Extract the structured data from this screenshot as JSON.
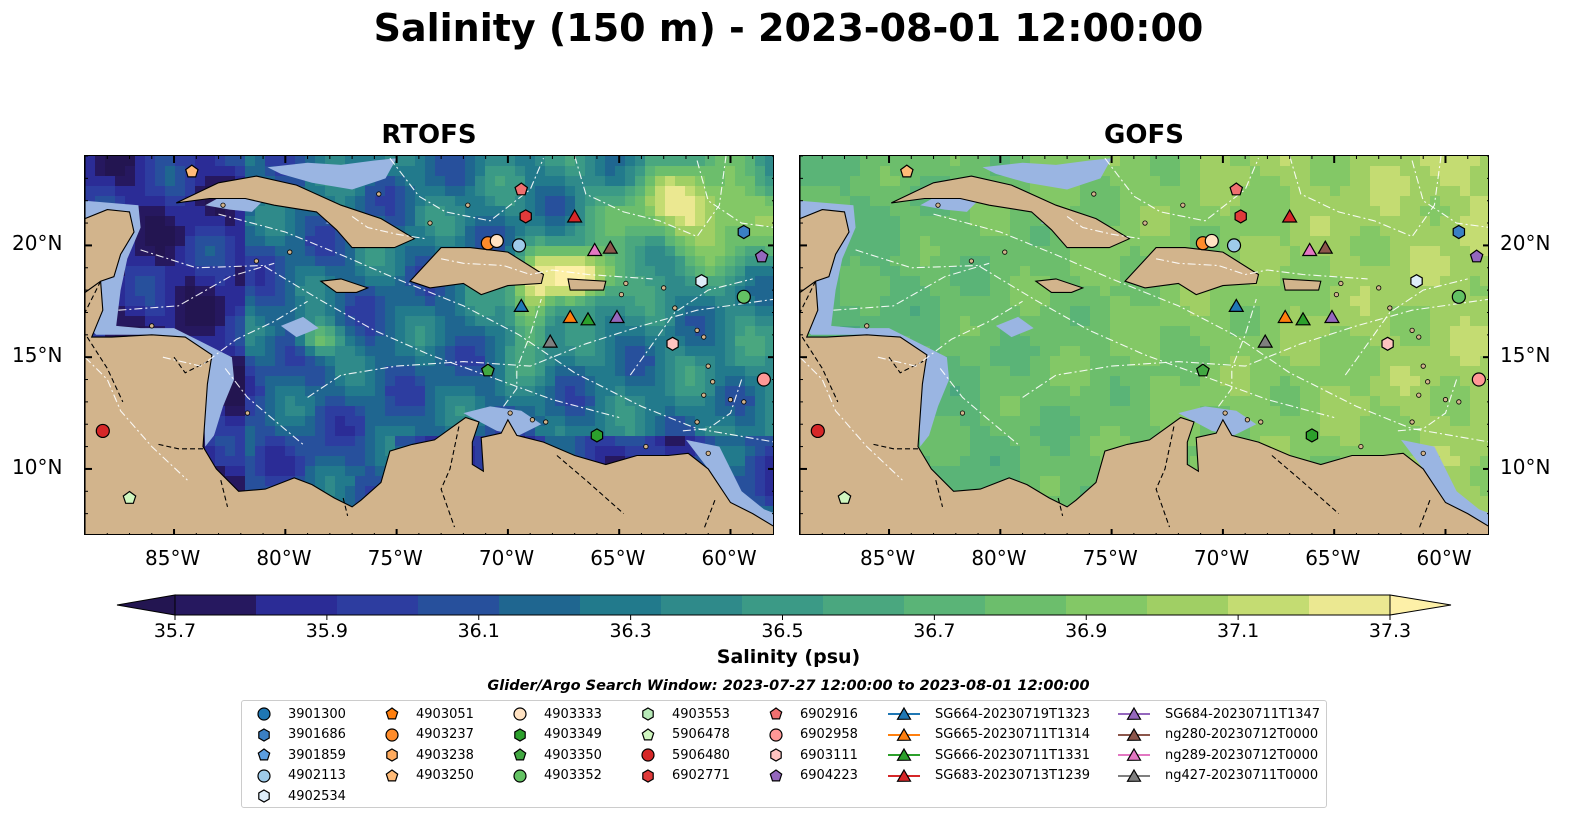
{
  "title": "Salinity (150 m) - 2023-08-01 12:00:00",
  "panels": [
    {
      "title": "RTOFS",
      "scheme": "rtofs"
    },
    {
      "title": "GOFS",
      "scheme": "gofs"
    }
  ],
  "map_extent": {
    "lon": [
      -89,
      -58
    ],
    "lat": [
      7,
      24
    ]
  },
  "lon_ticks": [
    {
      "value": -85,
      "label": "85°W"
    },
    {
      "value": -80,
      "label": "80°W"
    },
    {
      "value": -75,
      "label": "75°W"
    },
    {
      "value": -70,
      "label": "70°W"
    },
    {
      "value": -65,
      "label": "65°W"
    },
    {
      "value": -60,
      "label": "60°W"
    }
  ],
  "lat_ticks": [
    {
      "value": 10,
      "label": "10°N"
    },
    {
      "value": 15,
      "label": "15°N"
    },
    {
      "value": 20,
      "label": "20°N"
    }
  ],
  "colors": {
    "land": "#d2b48c",
    "shelf": "#9ab5e2",
    "track_lines": "#ffffff"
  },
  "colorbar": {
    "title": "Salinity (psu)",
    "min": 35.6,
    "max": 37.4,
    "step": 0.1,
    "tick_values": [
      "35.7",
      "35.9",
      "36.1",
      "36.3",
      "36.5",
      "36.7",
      "36.9",
      "37.1",
      "37.3"
    ],
    "colors": [
      "#26185f",
      "#2b2c96",
      "#2d3da0",
      "#27509c",
      "#1f6690",
      "#227a8c",
      "#2f8a8a",
      "#3b9a86",
      "#4aa77f",
      "#5ab477",
      "#6cbe6c",
      "#83c866",
      "#a0cf64",
      "#c4dc72",
      "#ebe891"
    ],
    "extend_min_color": "#231551",
    "extend_max_color": "#fdf0a8"
  },
  "legend": {
    "title": "Glider/Argo Search Window: 2023-07-27 12:00:00 to 2023-08-01 12:00:00",
    "entries": [
      {
        "label": "3901300",
        "marker": "circle",
        "color": "#1f77b4",
        "lon": null,
        "lat": null
      },
      {
        "label": "3901686",
        "marker": "hexagon",
        "color": "#3a7fc4",
        "lon": -59.4,
        "lat": 20.6
      },
      {
        "label": "3901859",
        "marker": "pentagon",
        "color": "#5b9ee0",
        "lon": null,
        "lat": null
      },
      {
        "label": "4902113",
        "marker": "circle",
        "color": "#9ecae9",
        "lon": -69.5,
        "lat": 20.0
      },
      {
        "label": "4902534",
        "marker": "hexagon",
        "color": "#deedf9",
        "lon": -61.3,
        "lat": 18.4
      },
      {
        "label": "4903051",
        "marker": "pentagon",
        "color": "#ff7f0e",
        "lon": null,
        "lat": null
      },
      {
        "label": "4903237",
        "marker": "circle",
        "color": "#ff8c2a",
        "lon": -70.9,
        "lat": 20.1
      },
      {
        "label": "4903238",
        "marker": "hexagon",
        "color": "#ffab5e",
        "lon": null,
        "lat": null
      },
      {
        "label": "4903250",
        "marker": "pentagon",
        "color": "#ffbb78",
        "lon": -84.2,
        "lat": 23.3
      },
      {
        "label": "4903333",
        "marker": "circle",
        "color": "#ffe2c2",
        "lon": -70.5,
        "lat": 20.2
      },
      {
        "label": "4903349",
        "marker": "hexagon",
        "color": "#2ca02c",
        "lon": -66.0,
        "lat": 11.5
      },
      {
        "label": "4903350",
        "marker": "pentagon",
        "color": "#42a842",
        "lon": -70.9,
        "lat": 14.4
      },
      {
        "label": "4903352",
        "marker": "circle",
        "color": "#63c263",
        "lon": -59.4,
        "lat": 17.7
      },
      {
        "label": "4903553",
        "marker": "hexagon",
        "color": "#b8eab8",
        "lon": null,
        "lat": null
      },
      {
        "label": "5906478",
        "marker": "pentagon",
        "color": "#d0f7c0",
        "lon": -87.0,
        "lat": 8.7
      },
      {
        "label": "5906480",
        "marker": "circle",
        "color": "#d62728",
        "lon": -88.2,
        "lat": 11.7
      },
      {
        "label": "6902771",
        "marker": "hexagon",
        "color": "#e03a3a",
        "lon": -69.2,
        "lat": 21.3
      },
      {
        "label": "6902916",
        "marker": "pentagon",
        "color": "#f07070",
        "lon": -69.4,
        "lat": 22.5
      },
      {
        "label": "6902958",
        "marker": "circle",
        "color": "#ff9896",
        "lon": -58.5,
        "lat": 14.0
      },
      {
        "label": "6903111",
        "marker": "hexagon",
        "color": "#ffc4c0",
        "lon": -62.6,
        "lat": 15.6
      },
      {
        "label": "6904223",
        "marker": "pentagon",
        "color": "#9467bd",
        "lon": -58.6,
        "lat": 19.5
      },
      {
        "label": "SG664-20230719T1323",
        "marker": "triangle",
        "color": "#1f77b4",
        "line": true,
        "lon": -69.4,
        "lat": 17.3
      },
      {
        "label": "SG665-20230711T1314",
        "marker": "triangle",
        "color": "#ff7f0e",
        "line": true,
        "lon": -67.2,
        "lat": 16.8
      },
      {
        "label": "SG666-20230711T1331",
        "marker": "triangle",
        "color": "#2ca02c",
        "line": true,
        "lon": -66.4,
        "lat": 16.7
      },
      {
        "label": "SG683-20230713T1239",
        "marker": "triangle",
        "color": "#d62728",
        "line": true,
        "lon": -67.0,
        "lat": 21.3
      },
      {
        "label": "SG684-20230711T1347",
        "marker": "triangle",
        "color": "#9467bd",
        "line": true,
        "lon": -65.1,
        "lat": 16.8
      },
      {
        "label": "ng280-20230712T0000",
        "marker": "triangle",
        "color": "#8c564b",
        "line": true,
        "lon": -65.4,
        "lat": 19.9
      },
      {
        "label": "ng289-20230712T0000",
        "marker": "triangle",
        "color": "#e377c2",
        "line": true,
        "lon": -66.1,
        "lat": 19.8
      },
      {
        "label": "ng427-20230711T0000",
        "marker": "triangle",
        "color": "#7f7f7f",
        "line": true,
        "lon": -68.1,
        "lat": 15.7
      }
    ]
  }
}
